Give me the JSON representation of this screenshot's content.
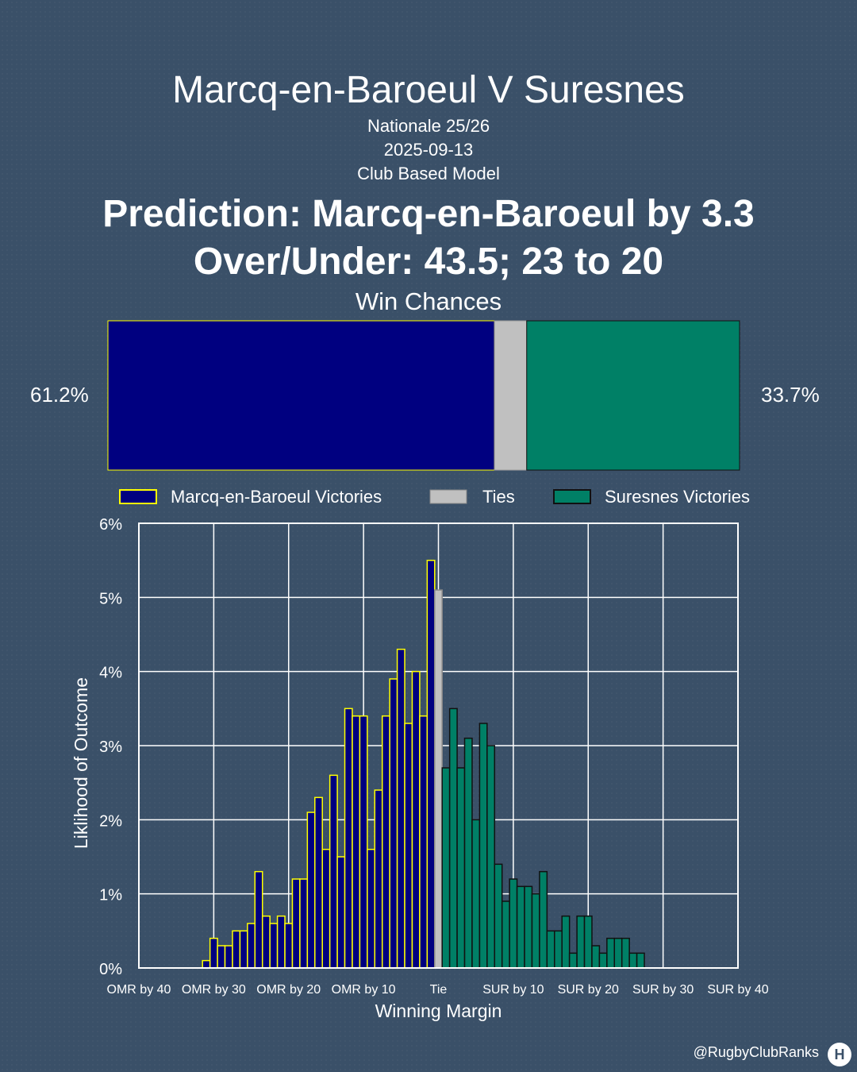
{
  "header": {
    "title": "Marcq-en-Baroeul V Suresnes",
    "competition": "Nationale 25/26",
    "date": "2025-09-13",
    "model": "Club Based Model",
    "prediction": "Prediction: Marcq-en-Baroeul by 3.3",
    "over_under": "Over/Under: 43.5; 23 to 20"
  },
  "win_chances": {
    "title": "Win Chances",
    "home_label": "61.2%",
    "away_label": "33.7%",
    "home_pct": 61.2,
    "tie_pct": 5.1,
    "away_pct": 33.7,
    "colors": {
      "home": "#000080",
      "tie": "#c0c0c0",
      "away": "#008066",
      "home_edge": "#ffff00",
      "away_edge": "#111111"
    }
  },
  "legend": {
    "home": "Marcq-en-Baroeul Victories",
    "tie": "Ties",
    "away": "Suresnes Victories"
  },
  "footer": {
    "credit": "@RugbyClubRanks",
    "logo_glyph": "H"
  },
  "chart_data": {
    "type": "bar",
    "xlabel": "Winning Margin",
    "ylabel": "Liklihood of Outcome",
    "xlim": [
      -40,
      40
    ],
    "ylim": [
      0,
      6
    ],
    "grid": true,
    "legend_position": "top",
    "x_ticks": [
      {
        "value": -40,
        "label": "OMR by 40"
      },
      {
        "value": -30,
        "label": "OMR by 30"
      },
      {
        "value": -20,
        "label": "OMR by 20"
      },
      {
        "value": -10,
        "label": "OMR by 10"
      },
      {
        "value": 0,
        "label": "Tie"
      },
      {
        "value": 10,
        "label": "SUR by 10"
      },
      {
        "value": 20,
        "label": "SUR by 20"
      },
      {
        "value": 30,
        "label": "SUR by 30"
      },
      {
        "value": 40,
        "label": "SUR by 40"
      }
    ],
    "y_ticks": [
      {
        "value": 0,
        "label": "0%"
      },
      {
        "value": 1,
        "label": "1%"
      },
      {
        "value": 2,
        "label": "2%"
      },
      {
        "value": 3,
        "label": "3%"
      },
      {
        "value": 4,
        "label": "4%"
      },
      {
        "value": 5,
        "label": "5%"
      },
      {
        "value": 6,
        "label": "6%"
      }
    ],
    "series": [
      {
        "name": "Marcq-en-Baroeul Victories",
        "margins": [
          -31,
          -30,
          -29,
          -28,
          -27,
          -26,
          -25,
          -24,
          -23,
          -22,
          -21,
          -20,
          -19,
          -18,
          -17,
          -16,
          -15,
          -14,
          -13,
          -12,
          -11,
          -10,
          -9,
          -8,
          -7,
          -6,
          -5,
          -4,
          -3,
          -2,
          -1
        ],
        "values": [
          0.1,
          0.4,
          0.3,
          0.3,
          0.5,
          0.5,
          0.6,
          1.3,
          0.7,
          0.6,
          0.7,
          0.6,
          1.2,
          1.2,
          2.1,
          2.3,
          1.6,
          2.6,
          1.5,
          3.5,
          3.4,
          3.4,
          1.6,
          2.4,
          3.4,
          3.9,
          4.3,
          3.3,
          4.0,
          3.4,
          5.5
        ]
      },
      {
        "name": "Ties",
        "margins": [
          0
        ],
        "values": [
          5.1
        ]
      },
      {
        "name": "Suresnes Victories",
        "margins": [
          1,
          2,
          3,
          4,
          5,
          6,
          7,
          8,
          9,
          10,
          11,
          12,
          13,
          14,
          15,
          16,
          17,
          18,
          19,
          20,
          21,
          22,
          23,
          24,
          25,
          26,
          27
        ],
        "values": [
          2.7,
          3.5,
          2.7,
          3.1,
          2.0,
          3.3,
          3.0,
          1.4,
          0.9,
          1.2,
          1.1,
          1.1,
          1.0,
          1.3,
          0.5,
          0.5,
          0.7,
          0.2,
          0.7,
          0.7,
          0.3,
          0.2,
          0.4,
          0.4,
          0.4,
          0.2,
          0.2
        ]
      }
    ]
  }
}
